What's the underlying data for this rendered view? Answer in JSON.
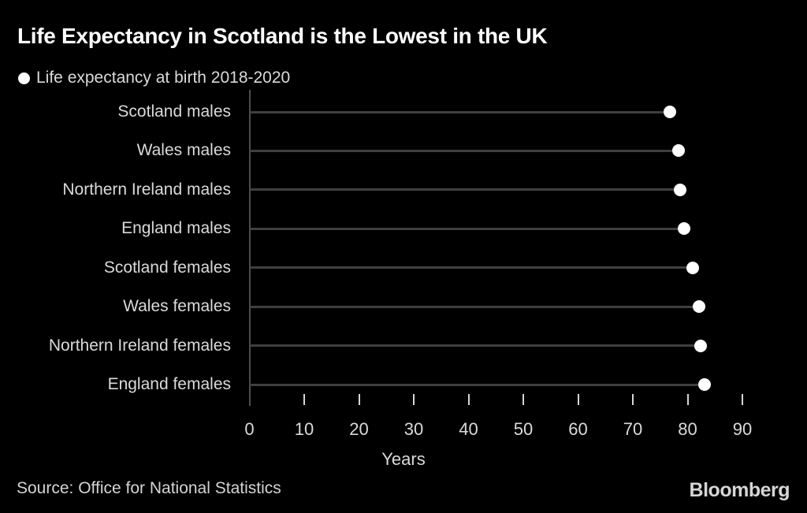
{
  "header": {
    "title": "Life Expectancy in Scotland is the Lowest in the UK"
  },
  "legend": {
    "marker_icon": "filled-circle",
    "label": "Life expectancy at birth 2018-2020"
  },
  "footer": {
    "source": "Source: Office for National Statistics",
    "brand": "Bloomberg"
  },
  "chart_data": {
    "type": "scatter",
    "subtype": "horizontal-lollipop-dot-plot",
    "title": "Life Expectancy in Scotland is the Lowest in the UK",
    "legend_entry": "Life expectancy at birth 2018-2020",
    "categories": [
      "Scotland males",
      "Wales males",
      "Northern Ireland males",
      "England males",
      "Scotland females",
      "Wales females",
      "Northern Ireland females",
      "England females"
    ],
    "values": [
      76.8,
      78.3,
      78.7,
      79.4,
      81.0,
      82.1,
      82.4,
      83.1
    ],
    "unit": "years",
    "xlabel": "Years",
    "ylabel": "",
    "xlim": [
      0,
      90
    ],
    "xticks": [
      0,
      10,
      20,
      30,
      40,
      50,
      60,
      70,
      80,
      90
    ],
    "grid": false,
    "legend_position": "top-left",
    "marker_color": "#ffffff",
    "line_color": "#3f3f3f"
  },
  "colors": {
    "background": "#000000",
    "title_text": "#ffffff",
    "label_text": "#dadada",
    "lollipop_line": "#3f3f3f",
    "axis_line": "#4d4d4d",
    "tick_mark": "#d6d6d6",
    "dot_fill": "#ffffff"
  }
}
